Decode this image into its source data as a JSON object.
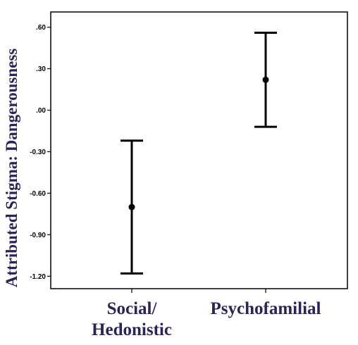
{
  "chart_data": {
    "type": "errorbar",
    "ylabel": "Attributed Stigma: Dangerousness",
    "categories": [
      {
        "lines": [
          "Social/",
          "Hedonistic"
        ]
      },
      {
        "lines": [
          "Psychofamilial"
        ]
      }
    ],
    "series": [
      {
        "values": [
          -0.7,
          0.22
        ],
        "lower": [
          -1.18,
          -0.12
        ],
        "upper": [
          -0.22,
          0.56
        ]
      }
    ],
    "y_ticks": [
      0.6,
      0.3,
      0.0,
      -0.3,
      -0.6,
      -0.9,
      -1.2
    ],
    "y_tick_labels": [
      ".60",
      ".30",
      ".00",
      "-0.30",
      "-0.60",
      "-0.90",
      "-1.20"
    ],
    "ylim": [
      -1.29,
      0.71
    ],
    "grid": false,
    "colors": {
      "axis_text": "#2a2558",
      "marks": "#000000"
    }
  }
}
